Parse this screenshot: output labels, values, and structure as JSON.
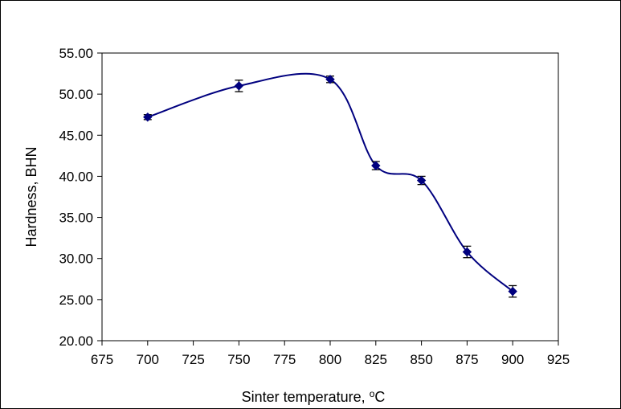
{
  "chart_data": {
    "type": "scatter",
    "xlabel": "Sinter temperature, ",
    "xlabel_superscript": "o",
    "xlabel_unit": "C",
    "ylabel": "Hardness, BHN",
    "xlim": [
      675,
      925
    ],
    "ylim": [
      20,
      55
    ],
    "x_ticks": [
      675,
      700,
      725,
      750,
      775,
      800,
      825,
      850,
      875,
      900,
      925
    ],
    "y_ticks": [
      20,
      25,
      30,
      35,
      40,
      45,
      50,
      55
    ],
    "y_tick_labels": [
      "20.00",
      "25.00",
      "30.00",
      "35.00",
      "40.00",
      "45.00",
      "50.00",
      "55.00"
    ],
    "grid": false,
    "smoothed_line": true,
    "series_color": "#00007f",
    "points": [
      {
        "x": 700,
        "y": 47.2,
        "err": 0.3
      },
      {
        "x": 750,
        "y": 51.0,
        "err": 0.7
      },
      {
        "x": 800,
        "y": 51.8,
        "err": 0.4
      },
      {
        "x": 825,
        "y": 41.3,
        "err": 0.5
      },
      {
        "x": 850,
        "y": 39.5,
        "err": 0.5
      },
      {
        "x": 875,
        "y": 30.8,
        "err": 0.7
      },
      {
        "x": 900,
        "y": 26.0,
        "err": 0.7
      }
    ]
  }
}
